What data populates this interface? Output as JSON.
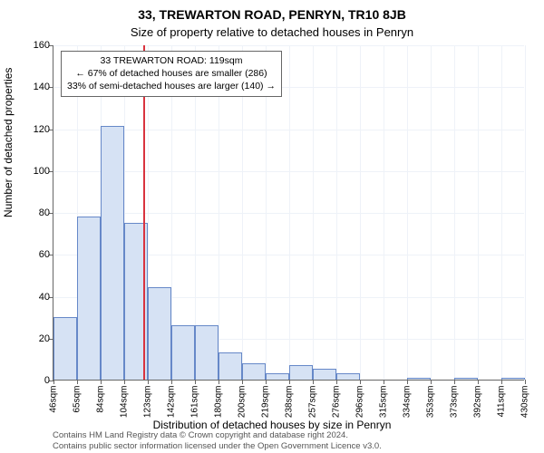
{
  "title_line1": "33, TREWARTON ROAD, PENRYN, TR10 8JB",
  "title_line2": "Size of property relative to detached houses in Penryn",
  "y_axis_label": "Number of detached properties",
  "x_axis_label": "Distribution of detached houses by size in Penryn",
  "footer_line1": "Contains HM Land Registry data © Crown copyright and database right 2024.",
  "footer_line2": "Contains public sector information licensed under the Open Government Licence v3.0.",
  "annotation": {
    "line1": "33 TREWARTON ROAD: 119sqm",
    "line2": "← 67% of detached houses are smaller (286)",
    "line3": "33% of semi-detached houses are larger (140) →",
    "border_color": "#666666",
    "background_color": "#ffffff",
    "fontsize": 10.5
  },
  "chart": {
    "type": "histogram",
    "ylim": [
      0,
      160
    ],
    "ytick_step": 20,
    "xtick_labels": [
      "46sqm",
      "65sqm",
      "84sqm",
      "104sqm",
      "123sqm",
      "142sqm",
      "161sqm",
      "180sqm",
      "200sqm",
      "219sqm",
      "238sqm",
      "257sqm",
      "276sqm",
      "296sqm",
      "315sqm",
      "334sqm",
      "353sqm",
      "373sqm",
      "392sqm",
      "411sqm",
      "430sqm"
    ],
    "num_bins": 20,
    "values": [
      30,
      78,
      121,
      75,
      44,
      26,
      26,
      13,
      8,
      3,
      7,
      5,
      3,
      0,
      0,
      1,
      0,
      1,
      0,
      1
    ],
    "bar_fill_color": "#d6e2f4",
    "bar_border_color": "#6688c8",
    "bar_border_width": 1,
    "grid_color": "#eef2f8",
    "background_color": "#ffffff",
    "reference_line": {
      "x_bin_position": 3.8,
      "color": "#d9333f",
      "width": 2
    },
    "title_fontsize": 14,
    "subtitle_fontsize": 13,
    "tick_fontsize": 11,
    "xtick_fontsize": 10,
    "axis_label_fontsize": 12
  }
}
